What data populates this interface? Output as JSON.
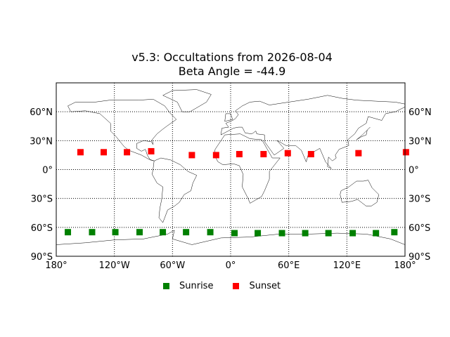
{
  "title": {
    "line1": "v5.3: Occultations from 2026-08-04",
    "line2": "Beta Angle = -44.9"
  },
  "colors": {
    "sunrise": "#008000",
    "sunset": "#ff0000",
    "grid": "#000000",
    "coast": "#000000"
  },
  "chart_data": {
    "type": "scatter",
    "projection": "cylindrical",
    "xlim": [
      -180,
      180
    ],
    "ylim": [
      -90,
      90
    ],
    "grid": "dotted",
    "legend_placement": "bottom-center",
    "x_ticks": [
      {
        "v": -180,
        "label": "180°"
      },
      {
        "v": -120,
        "label": "120°W"
      },
      {
        "v": -60,
        "label": "60°W"
      },
      {
        "v": 0,
        "label": "0°"
      },
      {
        "v": 60,
        "label": "60°E"
      },
      {
        "v": 120,
        "label": "120°E"
      },
      {
        "v": 180,
        "label": "180°"
      }
    ],
    "y_ticks": [
      {
        "v": 60,
        "label": "60°N"
      },
      {
        "v": 30,
        "label": "30°N"
      },
      {
        "v": 0,
        "label": "0°"
      },
      {
        "v": -30,
        "label": "30°S"
      },
      {
        "v": -60,
        "label": "60°S"
      },
      {
        "v": -90,
        "label": "90°S"
      }
    ],
    "series": [
      {
        "name": "Sunrise",
        "color": "#008000",
        "points": [
          [
            -168,
            -65
          ],
          [
            -143,
            -65
          ],
          [
            -119,
            -65
          ],
          [
            -94,
            -65
          ],
          [
            -70,
            -65
          ],
          [
            -46,
            -65
          ],
          [
            -21,
            -65
          ],
          [
            4,
            -66
          ],
          [
            28,
            -66
          ],
          [
            53,
            -66
          ],
          [
            77,
            -66
          ],
          [
            101,
            -66
          ],
          [
            126,
            -66
          ],
          [
            150,
            -66
          ],
          [
            169,
            -65
          ]
        ]
      },
      {
        "name": "Sunset",
        "color": "#ff0000",
        "points": [
          [
            -155,
            18
          ],
          [
            -131,
            18
          ],
          [
            -107,
            18
          ],
          [
            -82,
            19
          ],
          [
            -40,
            15
          ],
          [
            -15,
            15
          ],
          [
            9,
            16
          ],
          [
            34,
            16
          ],
          [
            59,
            17
          ],
          [
            83,
            16
          ],
          [
            132,
            17
          ],
          [
            181,
            18
          ]
        ]
      }
    ]
  },
  "legend": {
    "sunrise_label": "Sunrise",
    "sunset_label": "Sunset"
  }
}
